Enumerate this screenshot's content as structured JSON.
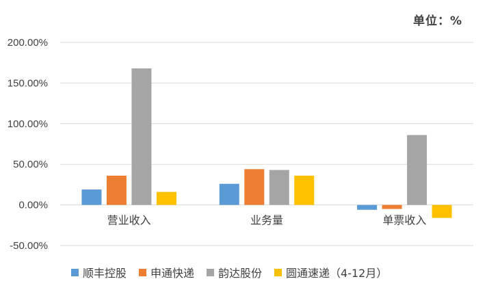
{
  "unit_label": "单位：%",
  "chart_data": {
    "type": "bar",
    "categories": [
      "营业收入",
      "业务量",
      "单票收入"
    ],
    "series": [
      {
        "name": "顺丰控股",
        "color": "#5B9BD5",
        "values": [
          19,
          26,
          -6
        ]
      },
      {
        "name": "申通快递",
        "color": "#ED7D31",
        "values": [
          36,
          44,
          -5
        ]
      },
      {
        "name": "韵达股份",
        "color": "#A5A5A5",
        "values": [
          168,
          43,
          86
        ]
      },
      {
        "name": "圆通速递（4-12月）",
        "color": "#FFC000",
        "values": [
          16,
          36,
          -16
        ]
      }
    ],
    "ylim": [
      -50,
      200
    ],
    "yticks": [
      "200.00%",
      "150.00%",
      "100.00%",
      "50.00%",
      "0.00%",
      "-50.00%"
    ],
    "ytick_values": [
      200,
      150,
      100,
      50,
      0,
      -50
    ],
    "grid": true,
    "legend_position": "bottom"
  }
}
